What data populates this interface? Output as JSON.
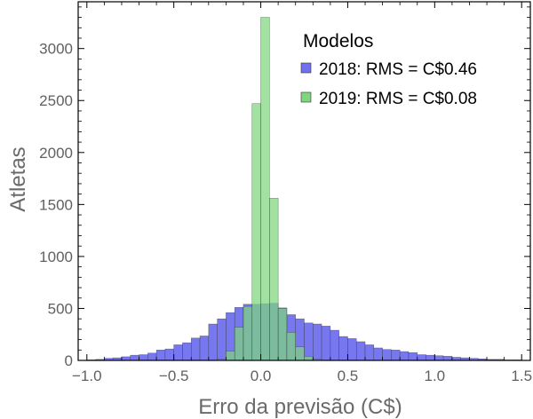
{
  "chart_data": {
    "type": "histogram",
    "xlabel": "Erro da previsão (C$)",
    "ylabel": "Atletas",
    "xlim": [
      -1.05,
      1.55
    ],
    "ylim": [
      0,
      3450
    ],
    "xticks": [
      -1.0,
      -0.5,
      0.0,
      0.5,
      1.0,
      1.5
    ],
    "xtick_labels": [
      "−1.0",
      "−0.5",
      "0.0",
      "0.5",
      "1.0",
      "1.5"
    ],
    "yticks": [
      0,
      500,
      1000,
      1500,
      2000,
      2500,
      3000
    ],
    "legend": {
      "title": "Modelos",
      "position": "top-right",
      "entries": [
        {
          "label": "2018: RMS = C$0.46",
          "color": "#7070ee"
        },
        {
          "label": "2019: RMS = C$0.08",
          "color": "#7ed67e"
        }
      ]
    },
    "bin_width": 0.05,
    "series": [
      {
        "name": "2018: RMS = C$0.46",
        "color": "#7070ee",
        "bins_start": [
          -1.0,
          -0.95,
          -0.9,
          -0.85,
          -0.8,
          -0.75,
          -0.7,
          -0.65,
          -0.6,
          -0.55,
          -0.5,
          -0.45,
          -0.4,
          -0.35,
          -0.3,
          -0.25,
          -0.2,
          -0.15,
          -0.1,
          -0.05,
          0.0,
          0.05,
          0.1,
          0.15,
          0.2,
          0.25,
          0.3,
          0.35,
          0.4,
          0.45,
          0.5,
          0.55,
          0.6,
          0.65,
          0.7,
          0.75,
          0.8,
          0.85,
          0.9,
          0.95,
          1.0,
          1.05,
          1.1,
          1.15,
          1.2,
          1.25,
          1.3,
          1.35,
          1.4,
          1.45
        ],
        "values": [
          5,
          10,
          20,
          25,
          35,
          50,
          55,
          70,
          100,
          110,
          150,
          170,
          215,
          235,
          350,
          400,
          460,
          510,
          540,
          540,
          545,
          550,
          505,
          440,
          400,
          360,
          350,
          330,
          290,
          230,
          210,
          180,
          150,
          120,
          105,
          100,
          85,
          75,
          55,
          50,
          45,
          40,
          30,
          25,
          20,
          15,
          10,
          10,
          5,
          5
        ]
      },
      {
        "name": "2019: RMS = C$0.08",
        "color": "#7ed67e",
        "bins_start": [
          -0.25,
          -0.2,
          -0.15,
          -0.1,
          -0.05,
          0.0,
          0.05,
          0.1,
          0.15,
          0.2,
          0.25,
          0.3
        ],
        "values": [
          10,
          90,
          320,
          520,
          2470,
          3300,
          1560,
          500,
          270,
          130,
          40,
          10
        ]
      }
    ]
  }
}
